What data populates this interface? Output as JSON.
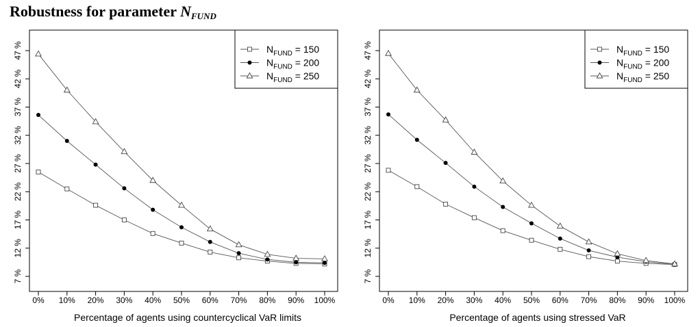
{
  "title": {
    "prefix": "Robustness for parameter ",
    "symbol": "N",
    "subscript": "FUND"
  },
  "chart_data": [
    {
      "type": "line",
      "xlabel": "Percentage of agents using countercyclical VaR limits",
      "ylabel": "",
      "x": [
        "0%",
        "10%",
        "20%",
        "30%",
        "40%",
        "50%",
        "60%",
        "70%",
        "80%",
        "90%",
        "100%"
      ],
      "yticks": [
        "7 %",
        "12 %",
        "17 %",
        "22 %",
        "27 %",
        "32 %",
        "37 %",
        "42 %",
        "47 %"
      ],
      "ylim": [
        7,
        47
      ],
      "legend_position": "top-right",
      "series": [
        {
          "name": "N_FUND = 150",
          "legend_base": "N",
          "legend_sub": "FUND",
          "legend_value": " = 150",
          "marker": "square",
          "values": [
            25.5,
            22.5,
            19.6,
            17.0,
            14.6,
            12.9,
            11.3,
            10.3,
            9.7,
            9.3,
            9.2
          ]
        },
        {
          "name": "N_FUND = 200",
          "legend_base": "N",
          "legend_sub": "FUND",
          "legend_value": " = 200",
          "marker": "circle",
          "values": [
            35.6,
            31.0,
            26.8,
            22.6,
            18.8,
            15.7,
            13.1,
            11.1,
            10.0,
            9.5,
            9.4
          ]
        },
        {
          "name": "N_FUND = 250",
          "legend_base": "N",
          "legend_sub": "FUND",
          "legend_value": " = 250",
          "marker": "triangle",
          "values": [
            46.4,
            40.0,
            34.4,
            29.1,
            24.0,
            19.6,
            15.4,
            12.6,
            10.9,
            10.2,
            10.1
          ]
        }
      ]
    },
    {
      "type": "line",
      "xlabel": "Percentage of agents using stressed VaR",
      "ylabel": "",
      "x": [
        "0%",
        "10%",
        "20%",
        "30%",
        "40%",
        "50%",
        "60%",
        "70%",
        "80%",
        "90%",
        "100%"
      ],
      "yticks": [
        "7 %",
        "12 %",
        "17 %",
        "22 %",
        "27 %",
        "32 %",
        "37 %",
        "42 %",
        "47 %"
      ],
      "ylim": [
        7,
        47
      ],
      "legend_position": "top-right",
      "series": [
        {
          "name": "N_FUND = 150",
          "legend_base": "N",
          "legend_sub": "FUND",
          "legend_value": " = 150",
          "marker": "square",
          "values": [
            25.8,
            22.9,
            19.8,
            17.4,
            15.1,
            13.4,
            11.8,
            10.5,
            9.7,
            9.3,
            9.1
          ]
        },
        {
          "name": "N_FUND = 200",
          "legend_base": "N",
          "legend_sub": "FUND",
          "legend_value": " = 200",
          "marker": "circle",
          "values": [
            35.7,
            31.2,
            27.1,
            22.9,
            19.3,
            16.4,
            13.7,
            11.6,
            10.4,
            9.6,
            9.1
          ]
        },
        {
          "name": "N_FUND = 250",
          "legend_base": "N",
          "legend_sub": "FUND",
          "legend_value": " = 250",
          "marker": "triangle",
          "values": [
            46.5,
            40.0,
            34.7,
            29.0,
            23.9,
            19.6,
            15.9,
            13.1,
            11.0,
            9.8,
            9.2
          ]
        }
      ]
    }
  ]
}
